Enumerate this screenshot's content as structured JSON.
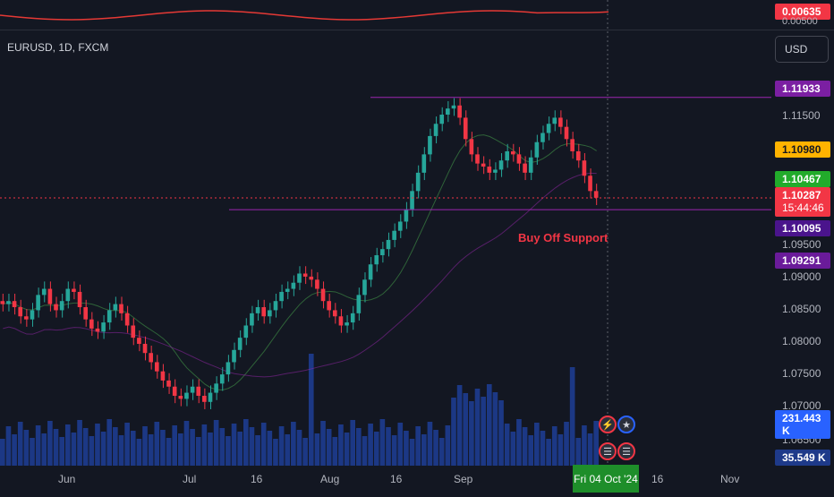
{
  "chart": {
    "symbol": "EURUSD, 1D, FXCM",
    "currency_button": "USD",
    "annotation": "Buy Off Support",
    "current_date_label": "Fri 04 Oct '24",
    "indicator_top_value": "0.00635",
    "indicator_top_tick": "0.00500",
    "volume_labels": {
      "upper": "231.443 K",
      "lower": "35.549 K"
    },
    "countdown": "15:44:46",
    "colors": {
      "background": "#131722",
      "up": "#26a69a",
      "down": "#f23645",
      "resistance": "#9c27b0",
      "support": "#9c27b0",
      "volume": "#2962ff"
    },
    "events": [
      {
        "icon": "lightning-icon"
      },
      {
        "icon": "eu-flag-icon"
      },
      {
        "icon": "us-flag-icon"
      },
      {
        "icon": "us-flag-icon"
      }
    ]
  },
  "chart_data": {
    "type": "candlestick",
    "title": "EURUSD, 1D, FXCM",
    "y_ticks": [
      "1.11500",
      "1.09500",
      "1.09000",
      "1.08500",
      "1.08000",
      "1.07500",
      "1.07000",
      "1.06500"
    ],
    "x_ticks": [
      "Jun",
      "Jul",
      "16",
      "Aug",
      "16",
      "Sep",
      "16",
      "Nov"
    ],
    "price_tags": [
      {
        "value": "1.11933",
        "label": "resistance"
      },
      {
        "value": "1.10980",
        "label": "price"
      },
      {
        "value": "1.10467",
        "label": "ma"
      },
      {
        "value": "1.10287",
        "label": "last"
      },
      {
        "value": "1.10095",
        "label": "support"
      },
      {
        "value": "1.09291",
        "label": "ma-long"
      }
    ],
    "ylim": [
      1.062,
      1.125
    ],
    "resistance": 1.11933,
    "support": 1.10095,
    "last_price": 1.10287,
    "close_path": [
      1.0855,
      1.086,
      1.085,
      1.0835,
      1.083,
      1.0845,
      1.087,
      1.088,
      1.0855,
      1.0845,
      1.086,
      1.088,
      1.0875,
      1.085,
      1.083,
      1.0815,
      1.081,
      1.0825,
      1.0845,
      1.0855,
      1.084,
      1.082,
      1.08,
      1.079,
      1.0775,
      1.076,
      1.0745,
      1.073,
      1.072,
      1.0705,
      1.07,
      1.071,
      1.072,
      1.0705,
      1.0695,
      1.071,
      1.0725,
      1.074,
      1.076,
      1.078,
      1.08,
      1.082,
      1.084,
      1.085,
      1.0835,
      1.0845,
      1.086,
      1.0875,
      1.088,
      1.089,
      1.0905,
      1.09,
      1.0895,
      1.088,
      1.086,
      1.0845,
      1.0835,
      1.082,
      1.0825,
      1.084,
      1.087,
      1.0895,
      1.092,
      1.0935,
      1.0945,
      1.096,
      1.0975,
      1.099,
      1.101,
      1.104,
      1.107,
      1.11,
      1.113,
      1.115,
      1.1165,
      1.1175,
      1.118,
      1.116,
      1.1125,
      1.11,
      1.1085,
      1.108,
      1.107,
      1.1075,
      1.109,
      1.1105,
      1.11,
      1.1085,
      1.107,
      1.1095,
      1.112,
      1.1135,
      1.115,
      1.116,
      1.1145,
      1.1125,
      1.1105,
      1.109,
      1.1065,
      1.104,
      1.1029
    ]
  }
}
